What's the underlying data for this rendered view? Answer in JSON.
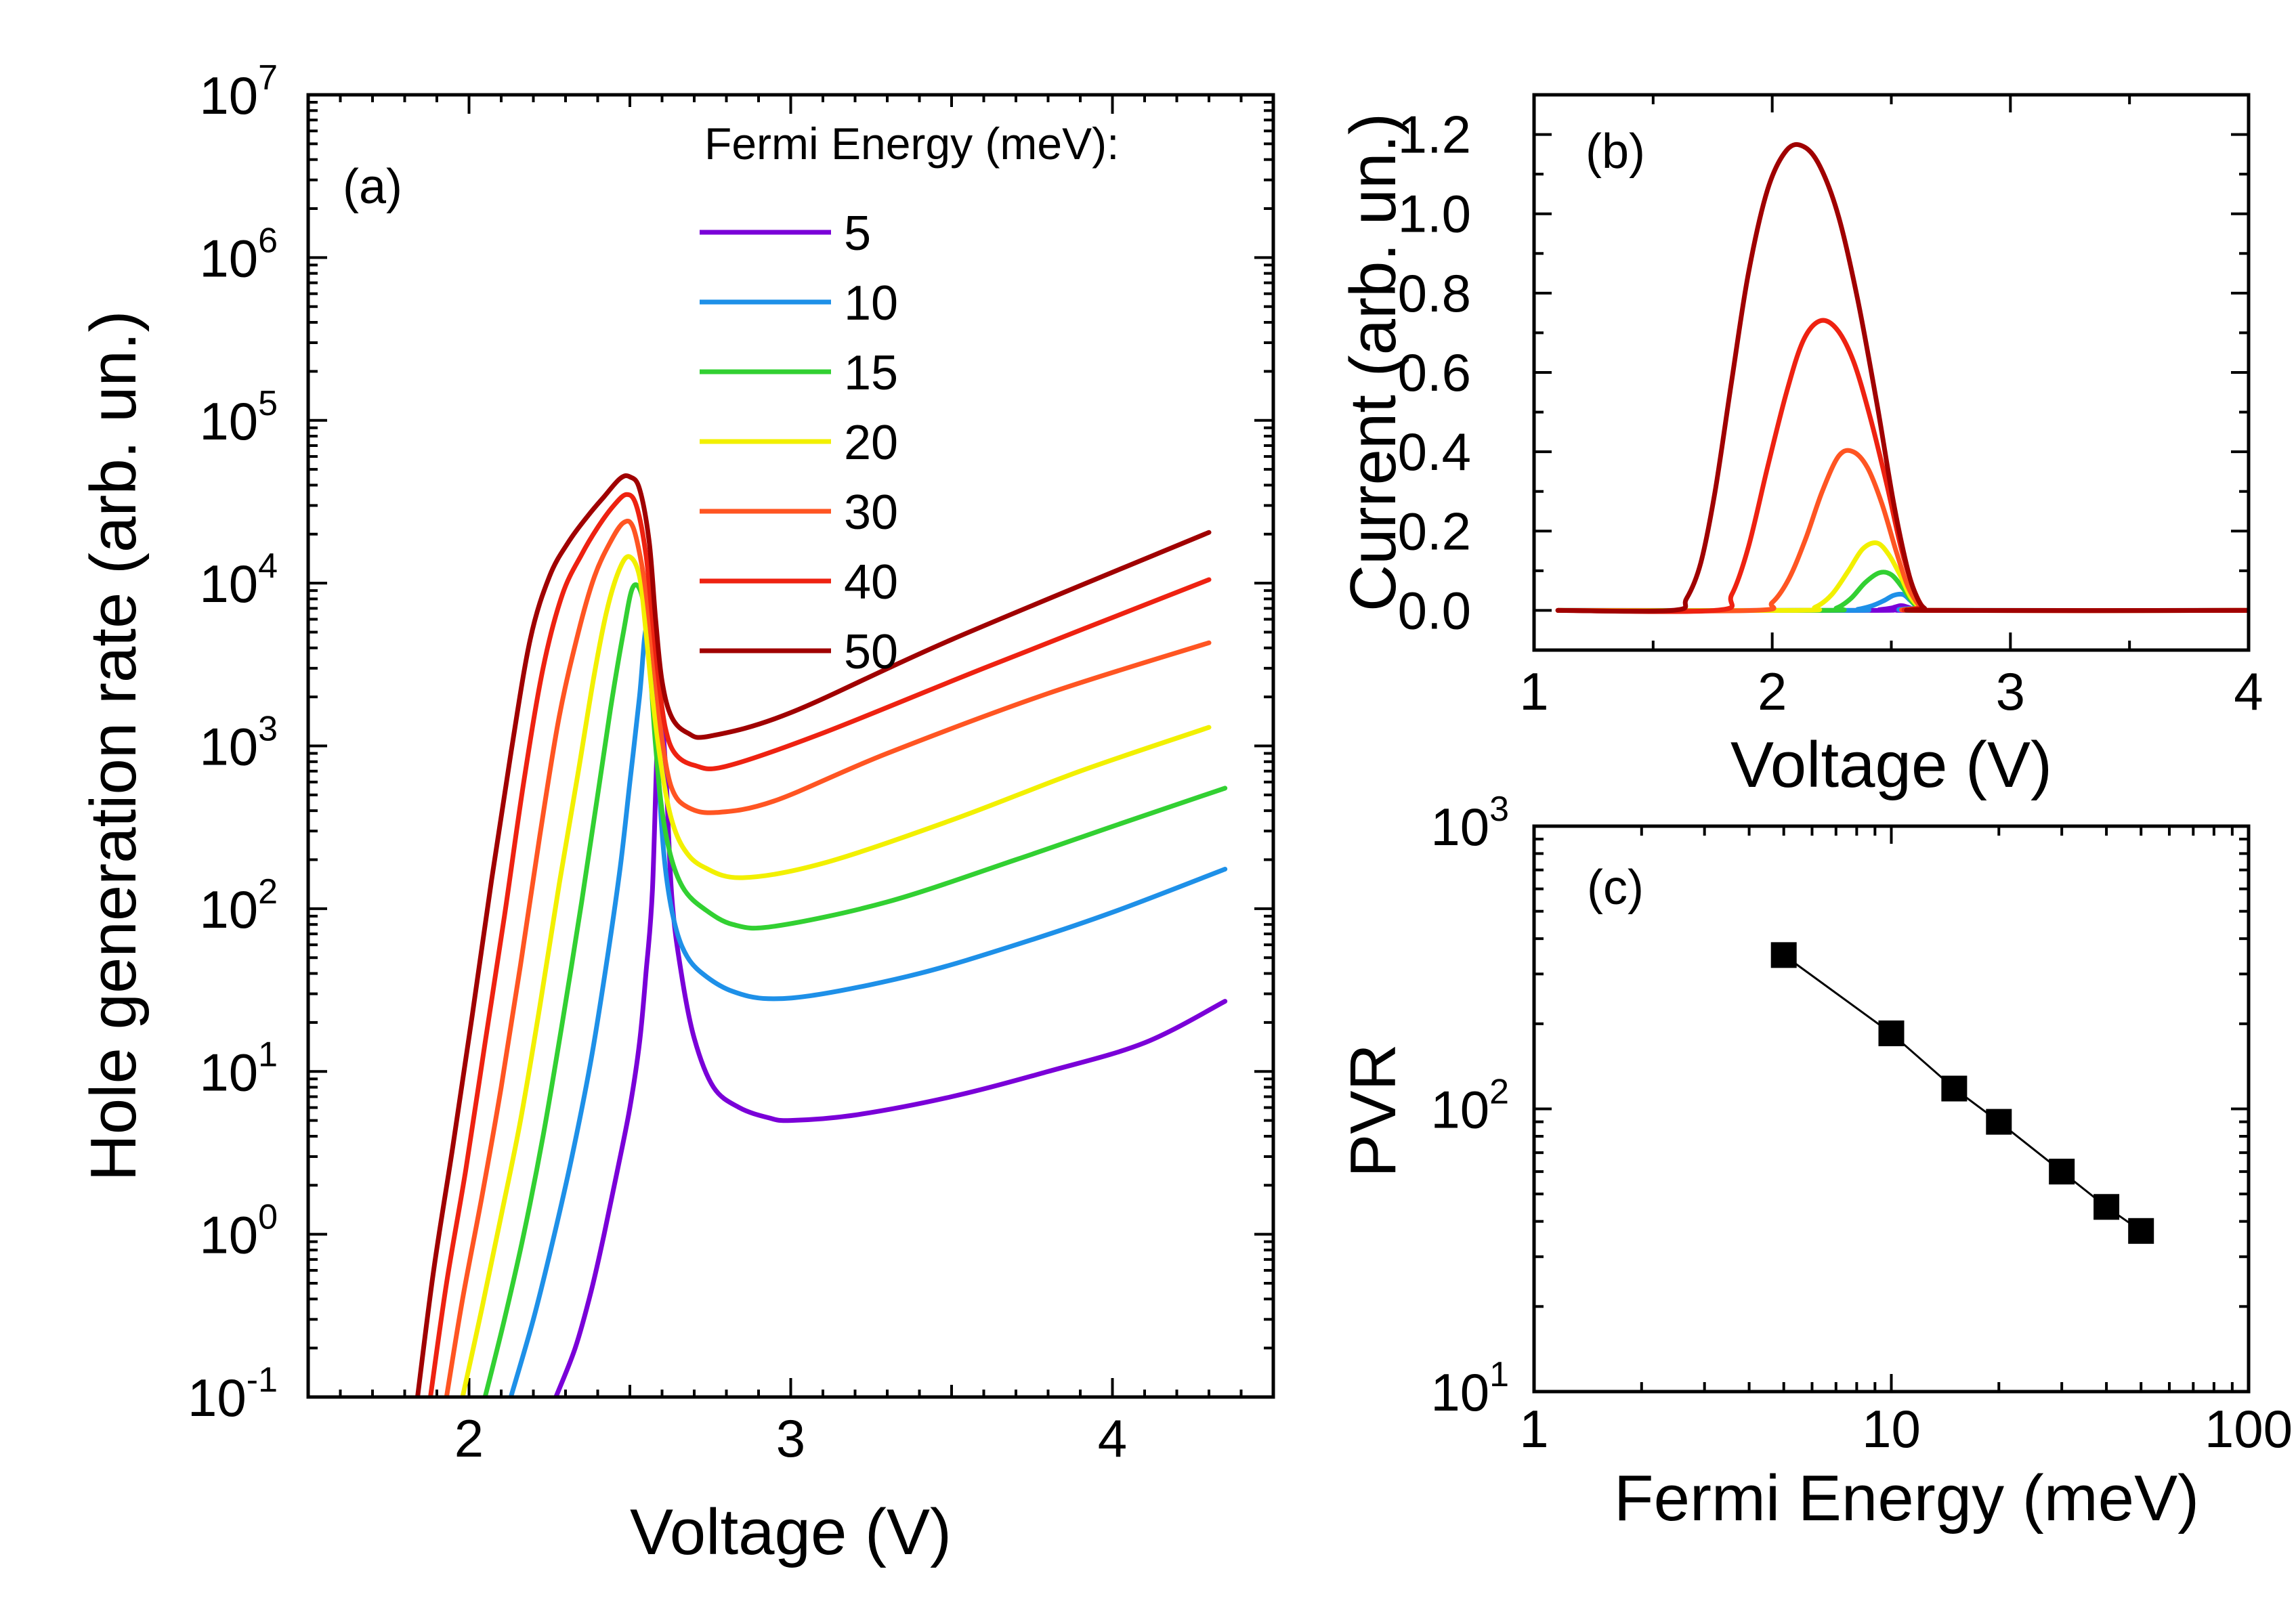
{
  "chart_data": [
    {
      "panel": "(a)",
      "type": "line",
      "xlabel": "Voltage (V)",
      "ylabel": "Hole generation rate (arb. un.)",
      "xlim": [
        1.5,
        4.5
      ],
      "ylim": [
        0.1,
        10000000
      ],
      "yscale": "log",
      "xticks": [
        "2",
        "3",
        "4"
      ],
      "yticks": [
        {
          "base": "10",
          "exp": "-1"
        },
        {
          "base": "10",
          "exp": "0"
        },
        {
          "base": "10",
          "exp": "1"
        },
        {
          "base": "10",
          "exp": "2"
        },
        {
          "base": "10",
          "exp": "3"
        },
        {
          "base": "10",
          "exp": "4"
        },
        {
          "base": "10",
          "exp": "5"
        },
        {
          "base": "10",
          "exp": "6"
        },
        {
          "base": "10",
          "exp": "7"
        }
      ],
      "legend": {
        "title": "Fermi Energy (meV):",
        "location": "top-right"
      },
      "series": [
        {
          "name": "5",
          "color": "#7a00d8",
          "x": [
            2.27,
            2.33,
            2.38,
            2.42,
            2.46,
            2.5,
            2.53,
            2.55,
            2.57,
            2.59,
            2.61,
            2.63,
            2.66,
            2.7,
            2.76,
            2.84,
            2.93,
            3.0,
            3.2,
            3.5,
            3.8,
            4.1,
            4.35
          ],
          "y": [
            0.1,
            0.2,
            0.45,
            1.0,
            2.4,
            6,
            15,
            40,
            130,
            1650,
            800,
            120,
            40,
            16,
            8,
            6,
            5.2,
            5,
            5.4,
            7,
            10,
            15,
            27
          ]
        },
        {
          "name": "10",
          "color": "#1e90e8",
          "x": [
            2.13,
            2.2,
            2.26,
            2.32,
            2.38,
            2.43,
            2.47,
            2.5,
            2.53,
            2.55,
            2.57,
            2.59,
            2.61,
            2.64,
            2.68,
            2.74,
            2.82,
            2.93,
            3.1,
            3.4,
            3.7,
            4.0,
            4.35
          ],
          "y": [
            0.1,
            0.3,
            0.9,
            3,
            12,
            50,
            180,
            600,
            2000,
            5200,
            3500,
            600,
            180,
            80,
            50,
            38,
            31,
            28,
            30,
            40,
            60,
            95,
            175
          ]
        },
        {
          "name": "15",
          "color": "#32d032",
          "x": [
            2.05,
            2.11,
            2.17,
            2.23,
            2.29,
            2.35,
            2.4,
            2.44,
            2.48,
            2.51,
            2.54,
            2.56,
            2.58,
            2.6,
            2.63,
            2.67,
            2.73,
            2.82,
            2.95,
            3.3,
            3.7,
            4.0,
            4.35
          ],
          "y": [
            0.1,
            0.3,
            1,
            4,
            20,
            110,
            500,
            1700,
            5000,
            9500,
            8000,
            3500,
            1000,
            400,
            200,
            130,
            100,
            80,
            78,
            110,
            200,
            320,
            550
          ]
        },
        {
          "name": "20",
          "color": "#f2f000",
          "x": [
            1.98,
            2.04,
            2.1,
            2.16,
            2.22,
            2.28,
            2.34,
            2.39,
            2.43,
            2.47,
            2.5,
            2.53,
            2.55,
            2.57,
            2.6,
            2.63,
            2.67,
            2.73,
            2.85,
            3.1,
            3.5,
            3.9,
            4.3
          ],
          "y": [
            0.1,
            0.35,
            1.3,
            5,
            25,
            140,
            700,
            2800,
            7000,
            12500,
            14500,
            11000,
            5000,
            2000,
            700,
            350,
            230,
            180,
            155,
            190,
            350,
            700,
            1300
          ]
        },
        {
          "name": "30",
          "color": "#ff5522",
          "x": [
            1.93,
            1.98,
            2.04,
            2.1,
            2.16,
            2.22,
            2.28,
            2.34,
            2.39,
            2.44,
            2.48,
            2.51,
            2.54,
            2.56,
            2.58,
            2.6,
            2.63,
            2.68,
            2.77,
            2.95,
            3.3,
            3.8,
            4.3
          ],
          "y": [
            0.1,
            0.4,
            1.7,
            8,
            45,
            280,
            1500,
            5000,
            11000,
            18000,
            23500,
            22000,
            12000,
            6000,
            2500,
            1100,
            550,
            420,
            390,
            460,
            900,
            2100,
            4300
          ]
        },
        {
          "name": "40",
          "color": "#ee2211",
          "x": [
            1.88,
            1.93,
            1.99,
            2.05,
            2.11,
            2.17,
            2.23,
            2.29,
            2.35,
            2.4,
            2.45,
            2.49,
            2.52,
            2.55,
            2.57,
            2.59,
            2.61,
            2.64,
            2.7,
            2.8,
            3.1,
            3.6,
            4.3
          ],
          "y": [
            0.1,
            0.5,
            2.5,
            15,
            90,
            600,
            3000,
            8500,
            15000,
            22000,
            30000,
            35000,
            30000,
            15000,
            6000,
            2500,
            1300,
            900,
            760,
            750,
            1200,
            3000,
            10500
          ]
        },
        {
          "name": "50",
          "color": "#a00000",
          "x": [
            1.84,
            1.89,
            1.95,
            2.01,
            2.07,
            2.13,
            2.19,
            2.25,
            2.31,
            2.37,
            2.42,
            2.47,
            2.5,
            2.53,
            2.56,
            2.58,
            2.6,
            2.63,
            2.68,
            2.75,
            3.0,
            3.5,
            4.3
          ],
          "y": [
            0.1,
            0.6,
            3.5,
            22,
            150,
            900,
            4500,
            11000,
            18000,
            26000,
            34000,
            44000,
            45000,
            38000,
            18000,
            6000,
            2500,
            1500,
            1200,
            1150,
            1600,
            4500,
            20500
          ]
        }
      ]
    },
    {
      "panel": "(b)",
      "type": "line",
      "xlabel": "Voltage (V)",
      "ylabel": "Current (arb. un.)",
      "xlim": [
        1,
        4
      ],
      "ylim": [
        -0.1,
        1.3
      ],
      "xticks": [
        "1",
        "2",
        "3",
        "4"
      ],
      "yticks": [
        "0.0",
        "0.2",
        "0.4",
        "0.6",
        "0.8",
        "1.0",
        "1.2"
      ],
      "series": [
        {
          "name": "5",
          "color": "#7a00d8",
          "x": [
            1.1,
            2.4,
            2.45,
            2.5,
            2.54,
            2.57,
            2.6,
            2.63,
            4.0
          ],
          "y": [
            0,
            0,
            0.002,
            0.006,
            0.012,
            0.008,
            0.002,
            0,
            0
          ]
        },
        {
          "name": "10",
          "color": "#1e90e8",
          "x": [
            1.1,
            2.3,
            2.36,
            2.42,
            2.47,
            2.51,
            2.55,
            2.58,
            2.61,
            2.64,
            4.0
          ],
          "y": [
            0,
            0,
            0.003,
            0.012,
            0.025,
            0.038,
            0.04,
            0.025,
            0.008,
            0,
            0
          ]
        },
        {
          "name": "15",
          "color": "#32d032",
          "x": [
            1.1,
            2.2,
            2.27,
            2.33,
            2.39,
            2.45,
            2.5,
            2.55,
            2.59,
            2.63,
            2.66,
            4.0
          ],
          "y": [
            0,
            0,
            0.006,
            0.03,
            0.07,
            0.095,
            0.09,
            0.055,
            0.02,
            0.003,
            0,
            0
          ]
        },
        {
          "name": "20",
          "color": "#f2f000",
          "x": [
            1.1,
            2.1,
            2.18,
            2.25,
            2.32,
            2.38,
            2.44,
            2.49,
            2.54,
            2.58,
            2.62,
            2.66,
            4.0
          ],
          "y": [
            0,
            0,
            0.008,
            0.04,
            0.1,
            0.155,
            0.17,
            0.14,
            0.085,
            0.035,
            0.008,
            0,
            0
          ]
        },
        {
          "name": "30",
          "color": "#ff5522",
          "x": [
            1.1,
            1.92,
            2.0,
            2.07,
            2.14,
            2.21,
            2.28,
            2.34,
            2.4,
            2.46,
            2.52,
            2.57,
            2.62,
            2.65,
            4.0
          ],
          "y": [
            0,
            0,
            0.02,
            0.08,
            0.18,
            0.3,
            0.39,
            0.4,
            0.36,
            0.27,
            0.15,
            0.06,
            0.01,
            0,
            0
          ]
        },
        {
          "name": "40",
          "color": "#ee2211",
          "x": [
            1.1,
            1.76,
            1.83,
            1.9,
            1.98,
            2.06,
            2.13,
            2.2,
            2.27,
            2.34,
            2.41,
            2.48,
            2.54,
            2.59,
            2.63,
            2.66,
            4.0
          ],
          "y": [
            0,
            0,
            0.04,
            0.16,
            0.36,
            0.55,
            0.68,
            0.73,
            0.71,
            0.63,
            0.49,
            0.32,
            0.16,
            0.06,
            0.01,
            0,
            0
          ]
        },
        {
          "name": "50",
          "color": "#a00000",
          "x": [
            1.1,
            1.58,
            1.64,
            1.7,
            1.76,
            1.83,
            1.9,
            1.98,
            2.06,
            2.13,
            2.2,
            2.28,
            2.36,
            2.44,
            2.51,
            2.57,
            2.61,
            2.64,
            2.67,
            4.0
          ],
          "y": [
            0,
            0,
            0.03,
            0.12,
            0.3,
            0.58,
            0.85,
            1.06,
            1.16,
            1.17,
            1.12,
            0.99,
            0.78,
            0.52,
            0.27,
            0.1,
            0.03,
            0.005,
            0,
            0
          ]
        }
      ]
    },
    {
      "panel": "(c)",
      "type": "scatter",
      "xlabel": "Fermi Energy (meV)",
      "ylabel": "PVR",
      "xscale": "log",
      "yscale": "log",
      "xlim": [
        1,
        100
      ],
      "ylim": [
        10,
        1000
      ],
      "xticks": [
        "1",
        "10",
        "100"
      ],
      "yticks": [
        {
          "base": "10",
          "exp": "1"
        },
        {
          "base": "10",
          "exp": "2"
        },
        {
          "base": "10",
          "exp": "3"
        }
      ],
      "x": [
        5,
        10,
        15,
        20,
        30,
        40,
        50
      ],
      "y": [
        350,
        185,
        118,
        90,
        60,
        45,
        37
      ]
    }
  ]
}
